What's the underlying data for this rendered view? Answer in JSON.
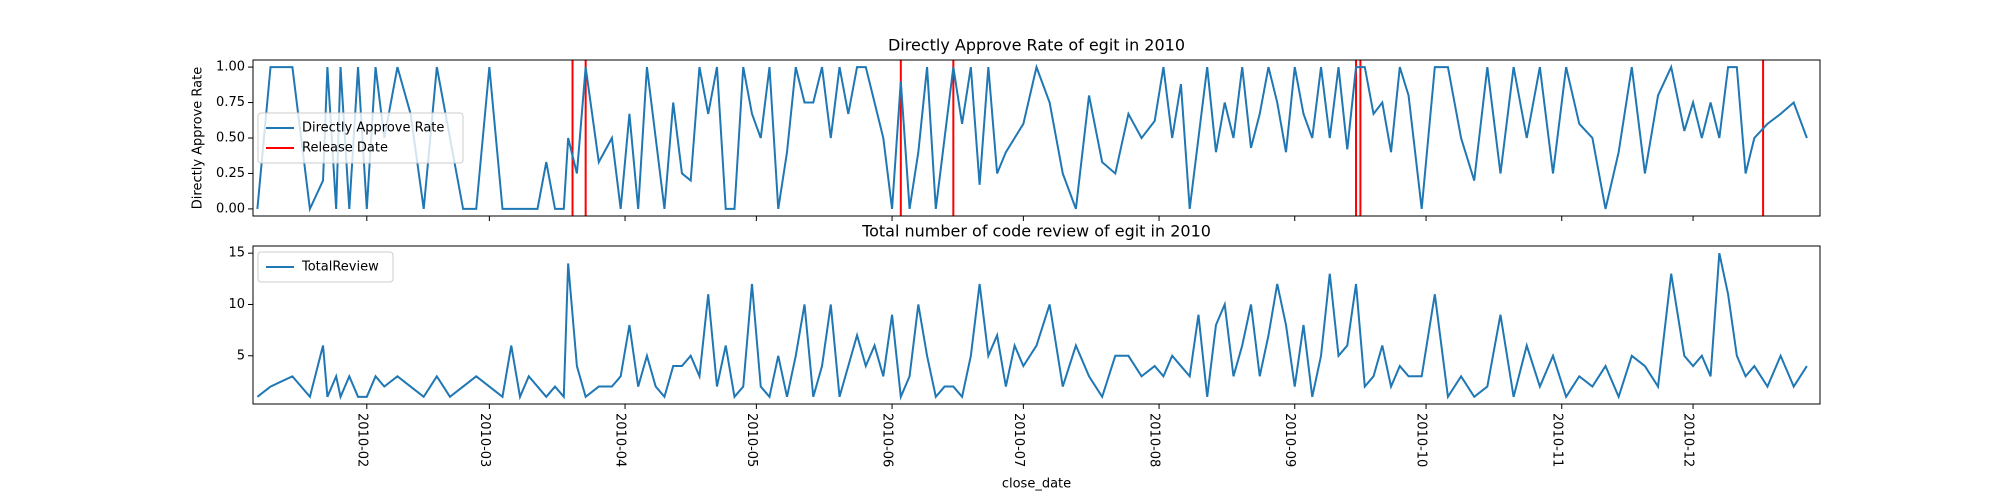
{
  "chart_data": [
    {
      "type": "line",
      "title": "Directly Approve Rate of egit in 2010",
      "ylabel": "Directly Approve Rate",
      "x": [
        6,
        9,
        14,
        18,
        21,
        22,
        24,
        25,
        27,
        29,
        31,
        33,
        35,
        38,
        41,
        44,
        47,
        50,
        53,
        56,
        59,
        62,
        64,
        66,
        68,
        70,
        72,
        74,
        76,
        77,
        79,
        81,
        84,
        87,
        89,
        91,
        93,
        95,
        97,
        99,
        101,
        103,
        105,
        107,
        109,
        111,
        113,
        115,
        117,
        119,
        121,
        123,
        125,
        127,
        129,
        131,
        133,
        135,
        137,
        139,
        141,
        143,
        145,
        147,
        149,
        151,
        153,
        155,
        157,
        159,
        161,
        163,
        165,
        167,
        169,
        171,
        173,
        175,
        177,
        179,
        181,
        184,
        187,
        190,
        193,
        196,
        199,
        202,
        205,
        208,
        211,
        213,
        215,
        217,
        219,
        221,
        223,
        225,
        227,
        229,
        231,
        233,
        235,
        237,
        239,
        241,
        243,
        245,
        247,
        249,
        251,
        253,
        255,
        257,
        259,
        261,
        263,
        265,
        267,
        269,
        272,
        275,
        278,
        281,
        284,
        287,
        290,
        293,
        296,
        299,
        302,
        305,
        308,
        311,
        314,
        317,
        320,
        323,
        326,
        329,
        332,
        334,
        336,
        338,
        340,
        342,
        344,
        346,
        348,
        351,
        354,
        357,
        360
      ],
      "series": [
        {
          "name": "Directly Approve Rate",
          "color": "#1f77b4",
          "values": [
            0,
            1,
            1,
            0,
            0.2,
            1,
            0,
            1,
            0,
            1,
            0,
            1,
            0.5,
            1,
            0.67,
            0,
            1,
            0.5,
            0,
            0,
            1,
            0,
            0,
            0,
            0,
            0,
            0.33,
            0,
            0,
            0.5,
            0.25,
            1,
            0.33,
            0.5,
            0,
            0.67,
            0,
            1,
            0.5,
            0,
            0.75,
            0.25,
            0.2,
            1,
            0.67,
            1,
            0,
            0,
            1,
            0.67,
            0.5,
            1,
            0,
            0.4,
            1,
            0.75,
            0.75,
            1,
            0.5,
            1,
            0.67,
            1,
            1,
            0.75,
            0.5,
            0,
            0.9,
            0,
            0.4,
            1,
            0,
            0.5,
            1,
            0.6,
            1,
            0.17,
            1,
            0.25,
            0.4,
            0.5,
            0.6,
            1,
            0.75,
            0.25,
            0,
            0.8,
            0.33,
            0.25,
            0.67,
            0.5,
            0.62,
            1,
            0.5,
            0.88,
            0,
            0.5,
            1,
            0.4,
            0.75,
            0.5,
            1,
            0.43,
            0.67,
            1,
            0.75,
            0.4,
            1,
            0.67,
            0.5,
            1,
            0.5,
            1,
            0.42,
            1,
            1,
            0.67,
            0.75,
            0.4,
            1,
            0.8,
            0,
            1,
            1,
            0.5,
            0.2,
            1,
            0.25,
            1,
            0.5,
            1,
            0.25,
            1,
            0.6,
            0.5,
            0,
            0.4,
            1,
            0.25,
            0.8,
            1,
            0.55,
            0.75,
            0.5,
            0.75,
            0.5,
            1,
            1,
            0.25,
            0.5,
            0.6,
            0.67,
            0.75,
            0.5
          ]
        }
      ],
      "vlines": {
        "name": "Release Date",
        "color": "#ff0000",
        "x": [
          78,
          81,
          153,
          165,
          257,
          258,
          350
        ]
      },
      "xlim": [
        5,
        363
      ],
      "ylim": [
        -0.05,
        1.05
      ],
      "yticks": [
        {
          "value": 0,
          "label": "0.00"
        },
        {
          "value": 0.25,
          "label": "0.25"
        },
        {
          "value": 0.5,
          "label": "0.50"
        },
        {
          "value": 0.75,
          "label": "0.75"
        },
        {
          "value": 1,
          "label": "1.00"
        }
      ],
      "legend": "center left"
    },
    {
      "type": "line",
      "title": "Total number of code review of egit in 2010",
      "xlabel": "close_date",
      "x": [
        6,
        9,
        14,
        18,
        21,
        22,
        24,
        25,
        27,
        29,
        31,
        33,
        35,
        38,
        41,
        44,
        47,
        50,
        53,
        56,
        59,
        62,
        64,
        66,
        68,
        70,
        72,
        74,
        76,
        77,
        79,
        81,
        84,
        87,
        89,
        91,
        93,
        95,
        97,
        99,
        101,
        103,
        105,
        107,
        109,
        111,
        113,
        115,
        117,
        119,
        121,
        123,
        125,
        127,
        129,
        131,
        133,
        135,
        137,
        139,
        141,
        143,
        145,
        147,
        149,
        151,
        153,
        155,
        157,
        159,
        161,
        163,
        165,
        167,
        169,
        171,
        173,
        175,
        177,
        179,
        181,
        184,
        187,
        190,
        193,
        196,
        199,
        202,
        205,
        208,
        211,
        213,
        215,
        217,
        219,
        221,
        223,
        225,
        227,
        229,
        231,
        233,
        235,
        237,
        239,
        241,
        243,
        245,
        247,
        249,
        251,
        253,
        255,
        257,
        259,
        261,
        263,
        265,
        267,
        269,
        272,
        275,
        278,
        281,
        284,
        287,
        290,
        293,
        296,
        299,
        302,
        305,
        308,
        311,
        314,
        317,
        320,
        323,
        326,
        329,
        332,
        334,
        336,
        338,
        340,
        342,
        344,
        346,
        348,
        351,
        354,
        357,
        360
      ],
      "series": [
        {
          "name": "TotalReview",
          "color": "#1f77b4",
          "values": [
            1,
            2,
            3,
            1,
            6,
            1,
            3,
            1,
            3,
            1,
            1,
            3,
            2,
            3,
            2,
            1,
            3,
            1,
            2,
            3,
            2,
            1,
            6,
            1,
            3,
            2,
            1,
            2,
            1,
            14,
            4,
            1,
            2,
            2,
            3,
            8,
            2,
            5,
            2,
            1,
            4,
            4,
            5,
            3,
            11,
            2,
            6,
            1,
            2,
            12,
            2,
            1,
            5,
            1,
            5,
            10,
            1,
            4,
            10,
            1,
            4,
            7,
            4,
            6,
            3,
            9,
            1,
            3,
            10,
            5,
            1,
            2,
            2,
            1,
            5,
            12,
            5,
            7,
            2,
            6,
            4,
            6,
            10,
            2,
            6,
            3,
            1,
            5,
            5,
            3,
            4,
            3,
            5,
            4,
            3,
            9,
            1,
            8,
            10,
            3,
            6,
            10,
            3,
            7,
            12,
            8,
            2,
            8,
            1,
            5,
            13,
            5,
            6,
            12,
            2,
            3,
            6,
            2,
            4,
            3,
            3,
            11,
            1,
            3,
            1,
            2,
            9,
            1,
            6,
            2,
            5,
            1,
            3,
            2,
            4,
            1,
            5,
            4,
            2,
            13,
            5,
            4,
            5,
            3,
            15,
            11,
            5,
            3,
            4,
            2,
            5,
            2,
            4
          ]
        }
      ],
      "xlim": [
        5,
        363
      ],
      "ylim": [
        0.3,
        15.7
      ],
      "yticks": [
        5,
        10,
        15
      ],
      "xticks": [
        {
          "value": 31,
          "label": "2010-02"
        },
        {
          "value": 59,
          "label": "2010-03"
        },
        {
          "value": 90,
          "label": "2010-04"
        },
        {
          "value": 120,
          "label": "2010-05"
        },
        {
          "value": 151,
          "label": "2010-06"
        },
        {
          "value": 181,
          "label": "2010-07"
        },
        {
          "value": 212,
          "label": "2010-08"
        },
        {
          "value": 243,
          "label": "2010-09"
        },
        {
          "value": 273,
          "label": "2010-10"
        },
        {
          "value": 304,
          "label": "2010-11"
        },
        {
          "value": 334,
          "label": "2010-12"
        }
      ],
      "legend": "upper left"
    }
  ]
}
